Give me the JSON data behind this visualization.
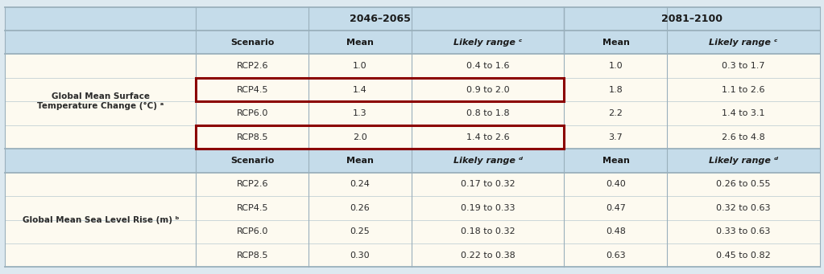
{
  "title_2046": "2046–2065",
  "title_2081": "2081–2100",
  "section1_label": "Global Mean Surface\nTemperature Change (°C) ᵃ",
  "section2_label": "Global Mean Sea Level Rise (m) ᵇ",
  "temp_rows": [
    [
      "RCP2.6",
      "1.0",
      "0.4 to 1.6",
      "1.0",
      "0.3 to 1.7"
    ],
    [
      "RCP4.5",
      "1.4",
      "0.9 to 2.0",
      "1.8",
      "1.1 to 2.6"
    ],
    [
      "RCP6.0",
      "1.3",
      "0.8 to 1.8",
      "2.2",
      "1.4 to 3.1"
    ],
    [
      "RCP8.5",
      "2.0",
      "1.4 to 2.6",
      "3.7",
      "2.6 to 4.8"
    ]
  ],
  "sea_rows": [
    [
      "RCP2.6",
      "0.24",
      "0.17 to 0.32",
      "0.40",
      "0.26 to 0.55"
    ],
    [
      "RCP4.5",
      "0.26",
      "0.19 to 0.33",
      "0.47",
      "0.32 to 0.63"
    ],
    [
      "RCP6.0",
      "0.25",
      "0.18 to 0.32",
      "0.48",
      "0.33 to 0.63"
    ],
    [
      "RCP8.5",
      "0.30",
      "0.22 to 0.38",
      "0.63",
      "0.45 to 0.82"
    ]
  ],
  "color_header_bg": "#c5dcea",
  "color_data_bg": "#fdfaf0",
  "color_label_bg": "#fdfaf0",
  "color_outer_bg": "#dde9f0",
  "color_highlight_border": "#8b0000",
  "color_text": "#2a2a2a",
  "color_grid_heavy": "#9ab0bc",
  "color_grid_light": "#b8c8d0",
  "figsize": [
    10.23,
    3.41
  ],
  "dpi": 100
}
